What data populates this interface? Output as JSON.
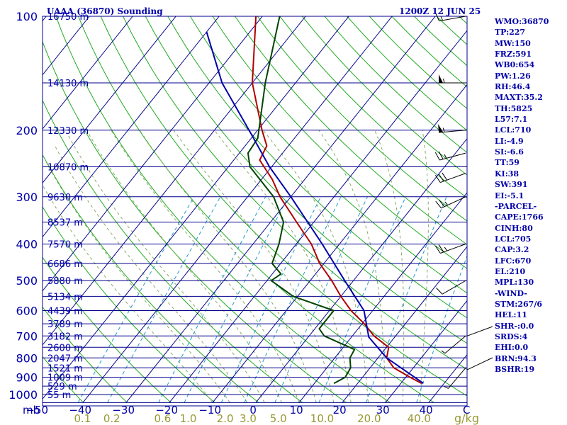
{
  "header": {
    "station": "UAAA (36870) Sounding",
    "time": "1200Z 12 JUN 25"
  },
  "indices": [
    "WMO:36870",
    "TP:227",
    "MW:150",
    "FRZ:591",
    "WB0:654",
    "PW:1.26",
    "RH:46.4",
    "MAXT:35.2",
    "TH:5825",
    "L57:7.1",
    "LCL:710",
    "LI:-4.9",
    "SI:-6.6",
    "TT:59",
    "KI:38",
    "SW:391",
    "EI:-5.1",
    "-PARCEL-",
    "CAPE:1766",
    "CINH:80",
    "LCL:705",
    "CAP:3.2",
    "LFC:670",
    "EL:210",
    "MPL:130",
    "-WIND-",
    "STM:267/6",
    "HEL:11",
    "SHR-:0.0",
    "SRDS:4",
    "EHI:0.0",
    "BRN:94.3",
    "BSHR:19"
  ],
  "colors": {
    "isobar": "#00008b",
    "isotherm": "#00008b",
    "dry_adiabat": "#22aa22",
    "moist_adiabat": "#88aa66",
    "mixing_ratio": "#2299cc",
    "temperature": "#b00000",
    "dewpoint": "#004400",
    "parcel": "#0000aa",
    "text": "#0000aa",
    "mixing_label": "#999933"
  },
  "chart_data": {
    "type": "line",
    "x_axis_label": "C",
    "y_axis_label": "mb",
    "mixing_axis_label": "g/kg",
    "pressure_levels": [
      100,
      200,
      300,
      400,
      500,
      600,
      700,
      800,
      900,
      1000
    ],
    "temperature_ticks": [
      -50,
      -40,
      -30,
      -20,
      -10,
      0,
      10,
      20,
      30,
      40
    ],
    "mixing_ratio_labels": [
      {
        "label": "0.1",
        "value": 0.1
      },
      {
        "label": "0.2",
        "value": 0.2
      },
      {
        "label": "0.6",
        "value": 0.6
      },
      {
        "label": "1.0",
        "value": 1.0
      },
      {
        "label": "2.0",
        "value": 2.0
      },
      {
        "label": "3.0",
        "value": 3.0
      },
      {
        "label": "5.0",
        "value": 5.0
      },
      {
        "label": "10.0",
        "value": 10.0
      },
      {
        "label": "20.0",
        "value": 20.0
      },
      {
        "label": "40.0",
        "value": 40.0
      }
    ],
    "height_levels": [
      {
        "p": 100,
        "label": "16750 m"
      },
      {
        "p": 150,
        "label": "14130 m"
      },
      {
        "p": 200,
        "label": "12330 m"
      },
      {
        "p": 250,
        "label": "10870 m"
      },
      {
        "p": 300,
        "label": "9630 m"
      },
      {
        "p": 350,
        "label": "8537 m"
      },
      {
        "p": 400,
        "label": "7570 m"
      },
      {
        "p": 450,
        "label": "6686 m"
      },
      {
        "p": 500,
        "label": "5880 m"
      },
      {
        "p": 550,
        "label": "5134 m"
      },
      {
        "p": 600,
        "label": "4439 m"
      },
      {
        "p": 650,
        "label": "3789 m"
      },
      {
        "p": 700,
        "label": "3182 m"
      },
      {
        "p": 750,
        "label": "2600 m"
      },
      {
        "p": 800,
        "label": "2047 m"
      },
      {
        "p": 850,
        "label": "1521 m"
      },
      {
        "p": 900,
        "label": "1009 m"
      },
      {
        "p": 950,
        "label": "529 m"
      },
      {
        "p": 1000,
        "label": "55 m"
      }
    ],
    "series": [
      {
        "key": "temperature",
        "points": [
          [
            934,
            34.8
          ],
          [
            900,
            31.0
          ],
          [
            850,
            25.5
          ],
          [
            800,
            22.0
          ],
          [
            750,
            20.5
          ],
          [
            700,
            15.0
          ],
          [
            650,
            10.5
          ],
          [
            600,
            5.0
          ],
          [
            550,
            0.0
          ],
          [
            500,
            -5.0
          ],
          [
            450,
            -11.0
          ],
          [
            400,
            -16.5
          ],
          [
            350,
            -24.0
          ],
          [
            300,
            -32.5
          ],
          [
            270,
            -37.5
          ],
          [
            240,
            -44.0
          ],
          [
            220,
            -45.0
          ],
          [
            200,
            -49.0
          ],
          [
            150,
            -60.0
          ],
          [
            100,
            -71.5
          ]
        ]
      },
      {
        "key": "dewpoint",
        "points": [
          [
            934,
            14.5
          ],
          [
            900,
            16.0
          ],
          [
            850,
            15.5
          ],
          [
            800,
            13.5
          ],
          [
            760,
            13.0
          ],
          [
            700,
            3.5
          ],
          [
            670,
            1.0
          ],
          [
            600,
            1.0
          ],
          [
            550,
            -11.0
          ],
          [
            500,
            -19.0
          ],
          [
            480,
            -18.0
          ],
          [
            450,
            -22.0
          ],
          [
            400,
            -24.0
          ],
          [
            350,
            -27.0
          ],
          [
            300,
            -34.0
          ],
          [
            250,
            -45.0
          ],
          [
            230,
            -48.0
          ],
          [
            210,
            -48.5
          ],
          [
            150,
            -57.0
          ],
          [
            100,
            -66.0
          ]
        ]
      },
      {
        "key": "parcel",
        "points": [
          [
            934,
            35.2
          ],
          [
            800,
            22.0
          ],
          [
            705,
            14.0
          ],
          [
            600,
            8.0
          ],
          [
            500,
            -2.0
          ],
          [
            400,
            -14.0
          ],
          [
            300,
            -30.0
          ],
          [
            250,
            -40.5
          ],
          [
            200,
            -52.0
          ],
          [
            150,
            -67.0
          ],
          [
            110,
            -80.0
          ]
        ]
      }
    ],
    "wind_barbs": [
      {
        "p": 100,
        "speed": 15,
        "dir": 260
      },
      {
        "p": 150,
        "speed": 55,
        "dir": 270
      },
      {
        "p": 200,
        "speed": 55,
        "dir": 265
      },
      {
        "p": 230,
        "speed": 25,
        "dir": 255
      },
      {
        "p": 260,
        "speed": 30,
        "dir": 250
      },
      {
        "p": 300,
        "speed": 25,
        "dir": 245
      },
      {
        "p": 400,
        "speed": 25,
        "dir": 250
      },
      {
        "p": 500,
        "speed": 10,
        "dir": 240
      },
      {
        "p": 700,
        "speed": 5,
        "dir": 230
      },
      {
        "p": 850,
        "speed": 5,
        "dir": 220
      }
    ]
  }
}
